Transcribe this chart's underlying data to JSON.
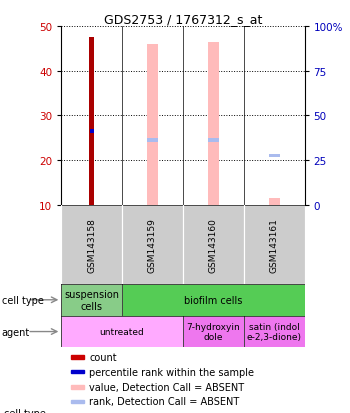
{
  "title": "GDS2753 / 1767312_s_at",
  "samples": [
    "GSM143158",
    "GSM143159",
    "GSM143160",
    "GSM143161"
  ],
  "ylim_left": [
    10,
    50
  ],
  "ylim_right": [
    0,
    100
  ],
  "yticks_left": [
    10,
    20,
    30,
    40,
    50
  ],
  "yticks_right": [
    0,
    25,
    50,
    75,
    100
  ],
  "bar_count_values": [
    47.5,
    null,
    null,
    null
  ],
  "bar_count_bottoms": [
    10,
    null,
    null,
    null
  ],
  "bar_value_absent": [
    null,
    46,
    46.5,
    11.5
  ],
  "bar_value_absent_bottoms": [
    null,
    10,
    10,
    10
  ],
  "bar_rank_absent": [
    null,
    24.5,
    24.5,
    21.0
  ],
  "percentile_rank_value": [
    26.5
  ],
  "percentile_rank_sample_idx": [
    0
  ],
  "count_color": "#aa0000",
  "value_absent_color": "#ffbbbb",
  "rank_absent_color": "#aabbee",
  "percentile_rank_color": "#0000cc",
  "cell_type_colors": [
    "#88cc88",
    "#55cc55"
  ],
  "agent_colors_light": "#ffaaff",
  "agent_colors_dark": "#ee77ee",
  "left_tick_color": "#cc0000",
  "right_tick_color": "#0000bb",
  "legend_items": [
    {
      "label": "count",
      "color": "#cc0000"
    },
    {
      "label": "percentile rank within the sample",
      "color": "#0000cc"
    },
    {
      "label": "value, Detection Call = ABSENT",
      "color": "#ffbbbb"
    },
    {
      "label": "rank, Detection Call = ABSENT",
      "color": "#aabbee"
    }
  ]
}
